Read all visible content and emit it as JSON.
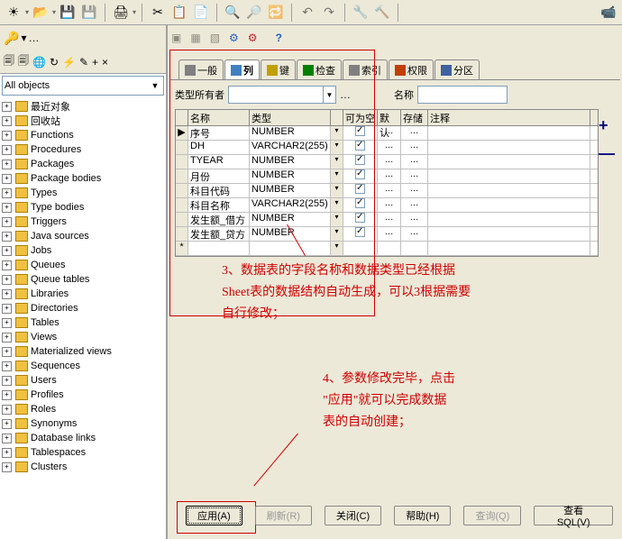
{
  "toolbar1_icons": [
    "sun",
    "folder",
    "disk",
    "disk-multi",
    "print",
    "|",
    "cut",
    "copy",
    "paste",
    "|",
    "find",
    "find-next",
    "replace",
    "|",
    "undo",
    "redo",
    "|",
    "tool",
    "tool2",
    "|",
    "bug"
  ],
  "toolbar2_left": {
    "key_icon": "🔑",
    "dd": "▾",
    "dots": "…"
  },
  "toolbar2_right_icons": [
    "a",
    "b",
    "c",
    "gear-blue",
    "gear-red",
    "|",
    "help"
  ],
  "sidebar_toolbar_icons": [
    "◀",
    "▶",
    "🔄",
    "↻",
    "⚡",
    "✎",
    "✚",
    "✖",
    "≡"
  ],
  "filter_label": "All objects",
  "tree_items": [
    "最近对象",
    "回收站",
    "Functions",
    "Procedures",
    "Packages",
    "Package bodies",
    "Types",
    "Type bodies",
    "Triggers",
    "Java sources",
    "Jobs",
    "Queues",
    "Queue tables",
    "Libraries",
    "Directories",
    "Tables",
    "Views",
    "Materialized views",
    "Sequences",
    "Users",
    "Profiles",
    "Roles",
    "Synonyms",
    "Database links",
    "Tablespaces",
    "Clusters"
  ],
  "tabs": [
    {
      "label": "一般",
      "icon": "#808080"
    },
    {
      "label": "列",
      "icon": "#4080c0",
      "active": true
    },
    {
      "label": "键",
      "icon": "#c0a000"
    },
    {
      "label": "检查",
      "icon": "#008000"
    },
    {
      "label": "索引",
      "icon": "#808080"
    },
    {
      "label": "权限",
      "icon": "#c04000"
    },
    {
      "label": "分区",
      "icon": "#4060a0"
    }
  ],
  "owner_label": "类型所有者",
  "name_label": "名称",
  "grid": {
    "headers": {
      "name": "名称",
      "type": "类型",
      "nullable": "可为空",
      "default": "默认",
      "store": "存储",
      "comment": "注释"
    },
    "rows": [
      {
        "marker": "▶",
        "name": "序号",
        "type": "NUMBER",
        "nullable": true
      },
      {
        "marker": "",
        "name": "DH",
        "type": "VARCHAR2(255)",
        "nullable": true
      },
      {
        "marker": "",
        "name": "TYEAR",
        "type": "NUMBER",
        "nullable": true
      },
      {
        "marker": "",
        "name": "月份",
        "type": "NUMBER",
        "nullable": true
      },
      {
        "marker": "",
        "name": "科目代码",
        "type": "NUMBER",
        "nullable": true
      },
      {
        "marker": "",
        "name": "科目名称",
        "type": "VARCHAR2(255)",
        "nullable": true
      },
      {
        "marker": "",
        "name": "发生额_借方",
        "type": "NUMBER",
        "nullable": true
      },
      {
        "marker": "",
        "name": "发生额_贷方",
        "type": "NUMBER",
        "nullable": true
      },
      {
        "marker": "*",
        "name": "",
        "type": "",
        "nullable": false
      }
    ]
  },
  "annotations_color": "#d00000",
  "note3": "3、数据表的字段名称和数据类型已经根据\nSheet表的数据结构自动生成，可以3根据需要\n自行修改；",
  "note4": "4、参数修改完毕，点击\n\"应用\"就可以完成数据\n表的自动创建；",
  "buttons": {
    "apply": "应用(A)",
    "refresh": "刷新(R)",
    "close": "关闭(C)",
    "help": "帮助(H)",
    "query": "查询(Q)",
    "viewsql": "查看 SQL(V)"
  },
  "plus": "+",
  "minus": "—"
}
